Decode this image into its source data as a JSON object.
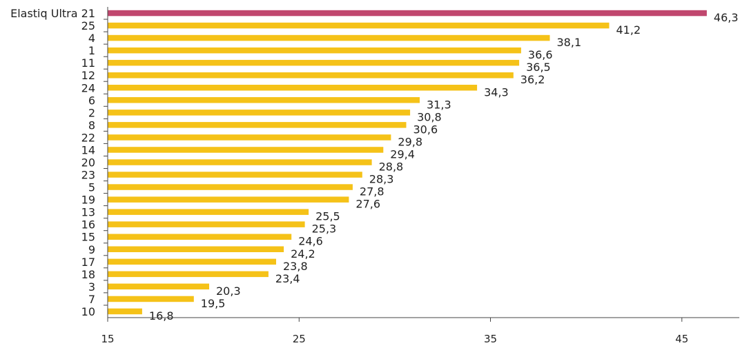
{
  "chart_data": {
    "type": "bar",
    "orientation": "horizontal",
    "title": "",
    "xlabel": "",
    "ylabel": "",
    "categories": [
      "Elastiq Ultra 21",
      "25",
      "4",
      "1",
      "11",
      "12",
      "24",
      "6",
      "2",
      "8",
      "22",
      "14",
      "20",
      "23",
      "5",
      "19",
      "13",
      "16",
      "15",
      "9",
      "17",
      "18",
      "3",
      "7",
      "10"
    ],
    "values": [
      46.3,
      41.2,
      38.1,
      36.6,
      36.5,
      36.2,
      34.3,
      31.3,
      30.8,
      30.6,
      29.8,
      29.4,
      28.8,
      28.3,
      27.8,
      27.6,
      25.5,
      25.3,
      24.6,
      24.2,
      23.8,
      23.4,
      20.3,
      19.5,
      16.8
    ],
    "value_labels": [
      "46,3",
      "41,2",
      "38,1",
      "36,6",
      "36,5",
      "36,2",
      "34,3",
      "31,3",
      "30,8",
      "30,6",
      "29,8",
      "29,4",
      "28,8",
      "28,3",
      "27,8",
      "27,6",
      "25,5",
      "25,3",
      "24,6",
      "24,2",
      "23,8",
      "23,4",
      "20,3",
      "19,5",
      "16,8"
    ],
    "xlim": [
      15,
      48
    ],
    "x_ticks": [
      15,
      25,
      35,
      45
    ],
    "x_tick_labels": [
      "15",
      "25",
      "35",
      "45"
    ],
    "grid": false,
    "legend": "none",
    "colors": {
      "highlight": "#c0476e",
      "default": "#f5c218",
      "highlight_category": "Elastiq Ultra 21"
    }
  }
}
